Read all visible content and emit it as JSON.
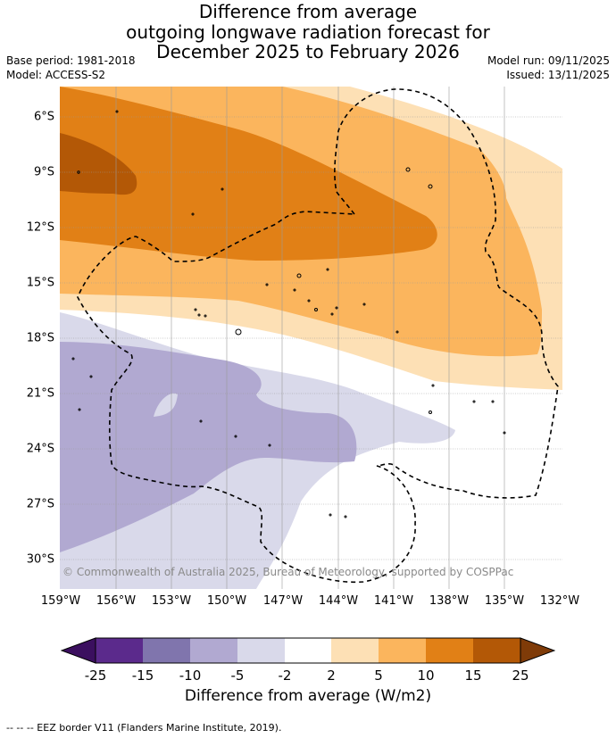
{
  "title": {
    "line1": "Difference from average",
    "line2": "outgoing longwave radiation forecast for",
    "line3": "December 2025 to February 2026"
  },
  "meta_left": {
    "base_period": "Base period: 1981-2018",
    "model": "Model: ACCESS-S2"
  },
  "meta_right": {
    "model_run": "Model run: 09/11/2025",
    "issued": "Issued: 13/11/2025"
  },
  "map": {
    "lat_labels": [
      "6°S",
      "9°S",
      "12°S",
      "15°S",
      "18°S",
      "21°S",
      "24°S",
      "27°S",
      "30°S"
    ],
    "lon_labels": [
      "159°W",
      "156°W",
      "153°W",
      "150°W",
      "147°W",
      "144°W",
      "141°W",
      "138°W",
      "135°W",
      "132°W"
    ],
    "copyright": "© Commonwealth of Australia 2025, Bureau of Meteorology, supported by COSPPac"
  },
  "colorbar": {
    "boundaries": [
      "-25",
      "-15",
      "-10",
      "-5",
      "-2",
      "2",
      "5",
      "10",
      "15",
      "25"
    ],
    "colors": [
      "#3b0f5f",
      "#5b2a8c",
      "#8075ad",
      "#b1a9d1",
      "#d9d9ea",
      "#ffffff",
      "#fde0b5",
      "#fbb55d",
      "#e18016",
      "#b35806",
      "#7f3b08"
    ],
    "title": "Difference from average (W/m2)"
  },
  "footnote": "--  --  -- EEZ border V11 (Flanders Marine Institute, 2019)."
}
